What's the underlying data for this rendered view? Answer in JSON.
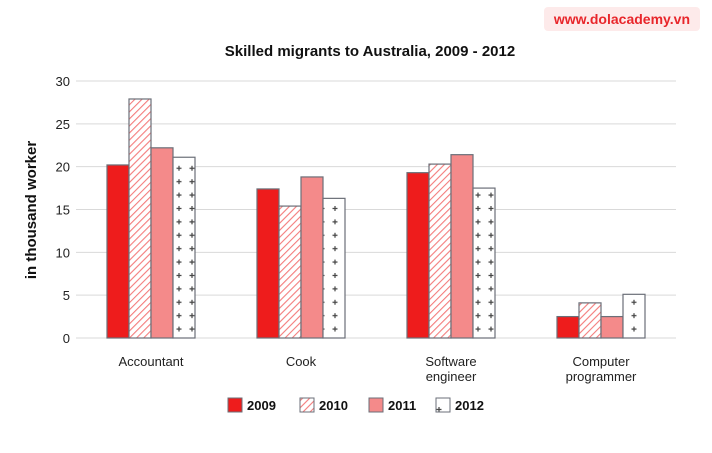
{
  "brand": "www.dolacademy.vn",
  "chart_data": {
    "type": "bar",
    "title": "Skilled migrants to Australia, 2009 - 2012",
    "xlabel": "",
    "ylabel": "in thousand worker",
    "ylim": [
      0,
      30
    ],
    "yticks": [
      0,
      5,
      10,
      15,
      20,
      25,
      30
    ],
    "grid": true,
    "legend": "bottom",
    "categories": [
      [
        "Accountant"
      ],
      [
        "Cook"
      ],
      [
        "Software",
        "engineer"
      ],
      [
        "Computer",
        "programmer"
      ]
    ],
    "series": [
      {
        "name": "2009",
        "values": [
          20.2,
          17.4,
          19.3,
          2.5
        ],
        "fill": "#ee1c1c",
        "pattern": "solid"
      },
      {
        "name": "2010",
        "values": [
          27.9,
          15.4,
          20.3,
          4.1
        ],
        "fill": "#f47c7c",
        "pattern": "hatch"
      },
      {
        "name": "2011",
        "values": [
          22.2,
          18.8,
          21.4,
          2.5
        ],
        "fill": "#f48a8a",
        "pattern": "solid"
      },
      {
        "name": "2012",
        "values": [
          21.1,
          16.3,
          17.5,
          5.1
        ],
        "fill": "#ffffff",
        "pattern": "plus"
      }
    ]
  }
}
